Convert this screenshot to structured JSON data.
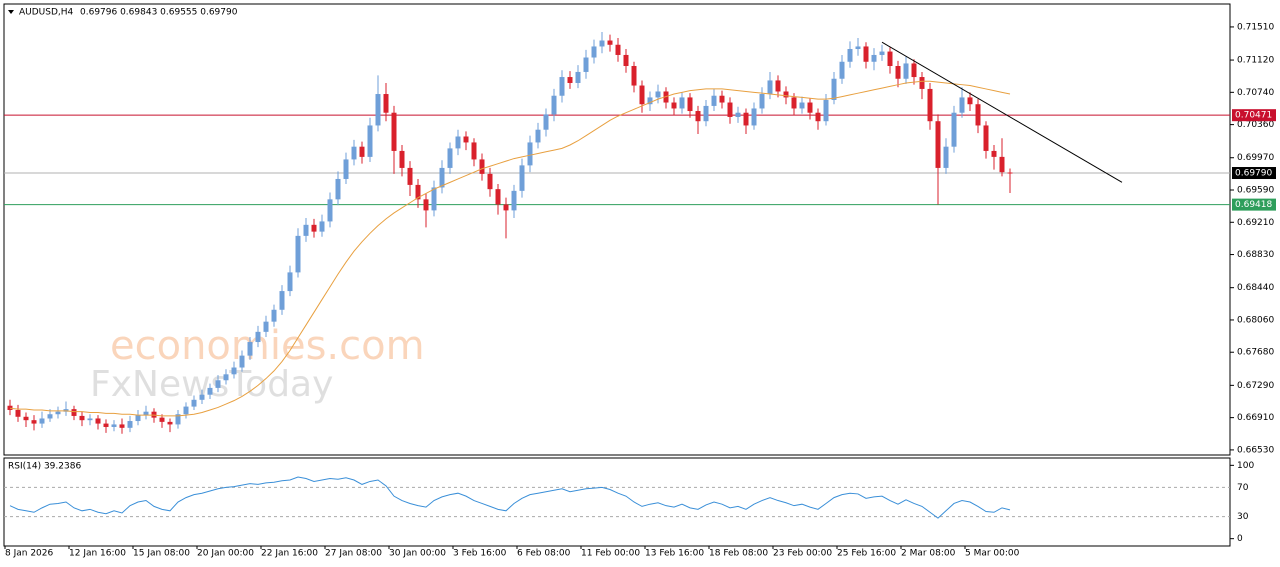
{
  "chart_data": {
    "type": "candlestick",
    "symbol": "AUDUSD,H4",
    "quote": "0.69796 0.69843 0.69555 0.69790",
    "up_color": "#6f9fd8",
    "down_color": "#d9212c",
    "categories": [
      "8 Jan 2026",
      null,
      null,
      null,
      null,
      null,
      null,
      null,
      "12 Jan 16:00",
      null,
      null,
      null,
      null,
      null,
      null,
      null,
      "15 Jan 08:00",
      null,
      null,
      null,
      null,
      null,
      null,
      null,
      "20 Jan 00:00",
      null,
      null,
      null,
      null,
      null,
      null,
      null,
      "22 Jan 16:00",
      null,
      null,
      null,
      null,
      null,
      null,
      null,
      "27 Jan 08:00",
      null,
      null,
      null,
      null,
      null,
      null,
      null,
      "30 Jan 00:00",
      null,
      null,
      null,
      null,
      null,
      null,
      null,
      "3 Feb 16:00",
      null,
      null,
      null,
      null,
      null,
      null,
      null,
      "6 Feb 08:00",
      null,
      null,
      null,
      null,
      null,
      null,
      null,
      "11 Feb 00:00",
      null,
      null,
      null,
      null,
      null,
      null,
      null,
      "13 Feb 16:00",
      null,
      null,
      null,
      null,
      null,
      null,
      null,
      "18 Feb 08:00",
      null,
      null,
      null,
      null,
      null,
      null,
      null,
      "23 Feb 00:00",
      null,
      null,
      null,
      null,
      null,
      null,
      null,
      "25 Feb 16:00",
      null,
      null,
      null,
      null,
      null,
      null,
      null,
      "2 Mar 08:00",
      null,
      null,
      null,
      null,
      null,
      null,
      null,
      "5 Mar 00:00",
      null,
      null,
      null,
      null,
      null
    ],
    "open": [
      0.6705,
      0.67,
      0.6692,
      0.6688,
      0.6684,
      0.669,
      0.6695,
      0.6698,
      0.6701,
      0.6693,
      0.6688,
      0.669,
      0.6684,
      0.668,
      0.6683,
      0.6679,
      0.6687,
      0.6694,
      0.6698,
      0.6691,
      0.6686,
      0.6683,
      0.6695,
      0.6704,
      0.6712,
      0.6718,
      0.6726,
      0.6735,
      0.6742,
      0.675,
      0.6764,
      0.678,
      0.6792,
      0.6804,
      0.6818,
      0.684,
      0.6862,
      0.6905,
      0.6918,
      0.691,
      0.6922,
      0.6948,
      0.6972,
      0.6995,
      0.701,
      0.6998,
      0.7035,
      0.7072,
      0.705,
      0.7005,
      0.6985,
      0.6965,
      0.6948,
      0.6935,
      0.6962,
      0.6985,
      0.7008,
      0.7022,
      0.7015,
      0.6995,
      0.6978,
      0.696,
      0.6942,
      0.6935,
      0.6958,
      0.6988,
      0.7015,
      0.703,
      0.7048,
      0.707,
      0.7092,
      0.7085,
      0.7098,
      0.7115,
      0.7128,
      0.7135,
      0.713,
      0.7118,
      0.7105,
      0.7082,
      0.706,
      0.7068,
      0.7075,
      0.7062,
      0.7055,
      0.7068,
      0.7052,
      0.704,
      0.7058,
      0.707,
      0.7062,
      0.7045,
      0.705,
      0.7035,
      0.7055,
      0.7072,
      0.7088,
      0.7075,
      0.7068,
      0.7055,
      0.7062,
      0.705,
      0.704,
      0.7065,
      0.709,
      0.711,
      0.7125,
      0.7128,
      0.711,
      0.7118,
      0.7122,
      0.7105,
      0.709,
      0.7108,
      0.7092,
      0.7078,
      0.704,
      0.6985,
      0.701,
      0.705,
      0.7068,
      0.706,
      0.7035,
      0.7005,
      0.6998,
      0.69796
    ],
    "high": [
      0.6712,
      0.6706,
      0.6697,
      0.6694,
      0.6698,
      0.6701,
      0.6704,
      0.671,
      0.6705,
      0.6698,
      0.6695,
      0.6694,
      0.6689,
      0.6688,
      0.669,
      0.6693,
      0.67,
      0.6705,
      0.6702,
      0.6695,
      0.669,
      0.67,
      0.6709,
      0.6717,
      0.6724,
      0.6731,
      0.6741,
      0.6748,
      0.6757,
      0.677,
      0.6786,
      0.6799,
      0.6811,
      0.6824,
      0.6847,
      0.687,
      0.6914,
      0.6926,
      0.6925,
      0.693,
      0.6956,
      0.6981,
      0.7003,
      0.7018,
      0.7016,
      0.7044,
      0.7094,
      0.7085,
      0.7058,
      0.7012,
      0.6993,
      0.6972,
      0.6955,
      0.697,
      0.6994,
      0.7015,
      0.703,
      0.7028,
      0.702,
      0.7002,
      0.6985,
      0.6966,
      0.695,
      0.6965,
      0.6996,
      0.7023,
      0.7038,
      0.7055,
      0.7078,
      0.71,
      0.7099,
      0.7106,
      0.7124,
      0.7136,
      0.7145,
      0.7142,
      0.7138,
      0.7125,
      0.711,
      0.7088,
      0.7075,
      0.7083,
      0.708,
      0.7068,
      0.7074,
      0.7073,
      0.7058,
      0.7065,
      0.7078,
      0.7076,
      0.7068,
      0.7057,
      0.7055,
      0.7062,
      0.708,
      0.7098,
      0.7094,
      0.7081,
      0.7073,
      0.7069,
      0.7067,
      0.7055,
      0.7072,
      0.7098,
      0.7118,
      0.7134,
      0.7138,
      0.7133,
      0.7126,
      0.713,
      0.7127,
      0.7111,
      0.7116,
      0.7113,
      0.7098,
      0.7085,
      0.7048,
      0.702,
      0.7058,
      0.708,
      0.7074,
      0.7066,
      0.704,
      0.7012,
      0.702,
      0.69843
    ],
    "low": [
      0.6694,
      0.6686,
      0.668,
      0.6676,
      0.6679,
      0.6686,
      0.669,
      0.6693,
      0.6688,
      0.6681,
      0.6682,
      0.6677,
      0.6673,
      0.6675,
      0.6672,
      0.6674,
      0.6682,
      0.6689,
      0.6685,
      0.6679,
      0.6674,
      0.6678,
      0.669,
      0.67,
      0.6707,
      0.6713,
      0.6721,
      0.673,
      0.6737,
      0.6745,
      0.6759,
      0.6774,
      0.6786,
      0.6798,
      0.6812,
      0.6834,
      0.6856,
      0.6898,
      0.6903,
      0.6904,
      0.6915,
      0.6941,
      0.6966,
      0.6988,
      0.699,
      0.6992,
      0.7028,
      0.704,
      0.6978,
      0.6975,
      0.6952,
      0.6938,
      0.6915,
      0.6928,
      0.6955,
      0.6978,
      0.7,
      0.7006,
      0.6987,
      0.697,
      0.6951,
      0.693,
      0.6902,
      0.6926,
      0.695,
      0.698,
      0.7008,
      0.7022,
      0.704,
      0.7062,
      0.7078,
      0.7079,
      0.709,
      0.7108,
      0.712,
      0.7122,
      0.711,
      0.7097,
      0.7074,
      0.705,
      0.7052,
      0.7061,
      0.7055,
      0.7047,
      0.7049,
      0.7044,
      0.7025,
      0.7034,
      0.7052,
      0.7055,
      0.7037,
      0.7038,
      0.7025,
      0.703,
      0.7049,
      0.7066,
      0.7068,
      0.706,
      0.7047,
      0.7049,
      0.7042,
      0.703,
      0.7035,
      0.706,
      0.7084,
      0.7103,
      0.7117,
      0.7102,
      0.71,
      0.7111,
      0.7096,
      0.708,
      0.7084,
      0.7083,
      0.7066,
      0.703,
      0.6942,
      0.6978,
      0.7003,
      0.7044,
      0.7052,
      0.7026,
      0.6996,
      0.6983,
      0.6975,
      0.69555
    ],
    "close": [
      0.67,
      0.6692,
      0.6688,
      0.6684,
      0.669,
      0.6695,
      0.6698,
      0.6701,
      0.6693,
      0.6688,
      0.669,
      0.6684,
      0.668,
      0.6683,
      0.6679,
      0.6687,
      0.6694,
      0.6698,
      0.6691,
      0.6686,
      0.6683,
      0.6695,
      0.6704,
      0.6712,
      0.6718,
      0.6726,
      0.6735,
      0.6742,
      0.675,
      0.6764,
      0.678,
      0.6792,
      0.6804,
      0.6818,
      0.684,
      0.6862,
      0.6905,
      0.6918,
      0.691,
      0.6922,
      0.6948,
      0.6972,
      0.6995,
      0.701,
      0.6998,
      0.7035,
      0.7072,
      0.705,
      0.7005,
      0.6985,
      0.6965,
      0.6948,
      0.6935,
      0.6962,
      0.6985,
      0.7008,
      0.7022,
      0.7015,
      0.6995,
      0.6978,
      0.696,
      0.6942,
      0.6935,
      0.6958,
      0.6988,
      0.7015,
      0.703,
      0.7048,
      0.707,
      0.7092,
      0.7085,
      0.7098,
      0.7115,
      0.7128,
      0.7135,
      0.713,
      0.7118,
      0.7105,
      0.7082,
      0.706,
      0.7068,
      0.7075,
      0.7062,
      0.7055,
      0.7068,
      0.7052,
      0.704,
      0.7058,
      0.707,
      0.7062,
      0.7045,
      0.705,
      0.7035,
      0.7055,
      0.7072,
      0.7088,
      0.7075,
      0.7068,
      0.7055,
      0.7062,
      0.705,
      0.704,
      0.7065,
      0.709,
      0.711,
      0.7125,
      0.7128,
      0.711,
      0.7118,
      0.7122,
      0.7105,
      0.709,
      0.7108,
      0.7092,
      0.7078,
      0.704,
      0.6985,
      0.701,
      0.705,
      0.7068,
      0.706,
      0.7035,
      0.7005,
      0.6998,
      0.698,
      0.6979
    ],
    "ylim": [
      0.6647,
      0.7178
    ],
    "yticks": [
      {
        "value": 0.7151,
        "label": "0.71510"
      },
      {
        "value": 0.7112,
        "label": "0.71120"
      },
      {
        "value": 0.7074,
        "label": "0.70740"
      },
      {
        "value": 0.7036,
        "label": "0.70360"
      },
      {
        "value": 0.6997,
        "label": "0.69970"
      },
      {
        "value": 0.6959,
        "label": "0.69590"
      },
      {
        "value": 0.6921,
        "label": "0.69210"
      },
      {
        "value": 0.6883,
        "label": "0.68830"
      },
      {
        "value": 0.6844,
        "label": "0.68440"
      },
      {
        "value": 0.6806,
        "label": "0.68060"
      },
      {
        "value": 0.6768,
        "label": "0.67680"
      },
      {
        "value": 0.6729,
        "label": "0.67290"
      },
      {
        "value": 0.6691,
        "label": "0.66910"
      },
      {
        "value": 0.6653,
        "label": "0.66530"
      }
    ],
    "price_lines": [
      {
        "value": 0.70471,
        "label": "0.70471",
        "color": "#c8102e"
      },
      {
        "value": 0.6979,
        "label": "0.69790",
        "color": "#b0b0b0",
        "box_color": "#000000"
      },
      {
        "value": 0.69418,
        "label": "0.69418",
        "color": "#2e9e5b"
      }
    ],
    "ma": {
      "color": "#e8a040",
      "values": [
        0.6702,
        0.6701,
        0.6701,
        0.67,
        0.67,
        0.6699,
        0.6699,
        0.6699,
        0.6698,
        0.6698,
        0.6697,
        0.6697,
        0.6696,
        0.6696,
        0.6695,
        0.6695,
        0.6694,
        0.6694,
        0.6694,
        0.6693,
        0.6693,
        0.6693,
        0.6694,
        0.6695,
        0.6697,
        0.67,
        0.6703,
        0.6707,
        0.6711,
        0.6716,
        0.6722,
        0.6729,
        0.6737,
        0.6746,
        0.6757,
        0.677,
        0.6785,
        0.68,
        0.6815,
        0.683,
        0.6845,
        0.686,
        0.6874,
        0.6887,
        0.6898,
        0.6908,
        0.6917,
        0.6925,
        0.6932,
        0.6938,
        0.6944,
        0.695,
        0.6955,
        0.696,
        0.6964,
        0.6968,
        0.6972,
        0.6976,
        0.698,
        0.6984,
        0.6987,
        0.699,
        0.6993,
        0.6996,
        0.6998,
        0.7,
        0.7002,
        0.7004,
        0.7006,
        0.7008,
        0.7012,
        0.7017,
        0.7023,
        0.7029,
        0.7035,
        0.7041,
        0.7046,
        0.705,
        0.7054,
        0.7058,
        0.7062,
        0.7066,
        0.7069,
        0.7072,
        0.7074,
        0.7076,
        0.7077,
        0.7078,
        0.7078,
        0.7078,
        0.7077,
        0.7076,
        0.7075,
        0.7074,
        0.7073,
        0.7072,
        0.7071,
        0.707,
        0.7069,
        0.7068,
        0.7067,
        0.7066,
        0.7066,
        0.7067,
        0.7069,
        0.7071,
        0.7073,
        0.7075,
        0.7077,
        0.7079,
        0.7081,
        0.7083,
        0.7085,
        0.7086,
        0.7087,
        0.7087,
        0.7086,
        0.7085,
        0.7084,
        0.7083,
        0.7082,
        0.708,
        0.7078,
        0.7076,
        0.7074,
        0.7072
      ]
    },
    "trendline": {
      "color": "#000000",
      "x": [
        109,
        139
      ],
      "values": [
        0.7133,
        0.6968
      ]
    },
    "watermark": [
      "economies.com",
      "FxNewsToday"
    ],
    "rsi": {
      "title": "RSI(14) 39.2386",
      "color": "#3a8fd8",
      "ylim": [
        -10,
        110
      ],
      "yticks": [
        100,
        70,
        30,
        0
      ],
      "values": [
        45,
        40,
        38,
        36,
        42,
        47,
        48,
        50,
        42,
        38,
        40,
        36,
        34,
        38,
        35,
        45,
        50,
        52,
        44,
        40,
        38,
        50,
        56,
        60,
        62,
        65,
        68,
        70,
        71,
        73,
        75,
        74,
        76,
        77,
        79,
        80,
        84,
        82,
        78,
        80,
        82,
        81,
        83,
        80,
        74,
        78,
        80,
        72,
        58,
        52,
        48,
        45,
        43,
        52,
        57,
        60,
        62,
        58,
        52,
        48,
        44,
        40,
        38,
        48,
        55,
        60,
        62,
        64,
        66,
        68,
        64,
        66,
        68,
        69,
        70,
        67,
        62,
        58,
        50,
        44,
        47,
        49,
        45,
        43,
        47,
        42,
        40,
        46,
        50,
        47,
        42,
        44,
        40,
        47,
        52,
        56,
        52,
        49,
        45,
        47,
        43,
        40,
        48,
        56,
        60,
        62,
        61,
        55,
        57,
        58,
        52,
        47,
        53,
        48,
        44,
        36,
        28,
        38,
        48,
        52,
        50,
        44,
        37,
        36,
        42,
        39.2386
      ]
    }
  }
}
